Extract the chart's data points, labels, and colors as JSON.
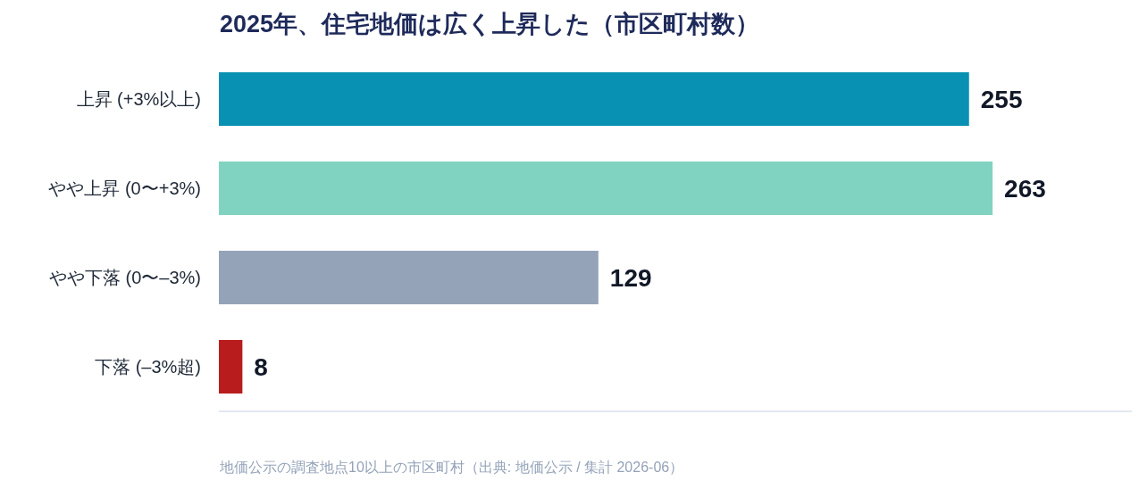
{
  "chart_data": {
    "type": "bar",
    "orientation": "horizontal",
    "title": "2025年、住宅地価は広く上昇した（市区町村数）",
    "categories": [
      "上昇 (+3%以上)",
      "やや上昇 (0〜+3%)",
      "やや下落 (0〜–3%)",
      "下落 (–3%超)"
    ],
    "values": [
      255,
      263,
      129,
      8
    ],
    "colors": [
      "#0891b2",
      "#80d3c1",
      "#94a3b8",
      "#b91c1c"
    ],
    "data_labels": true,
    "grid": false,
    "legend": false,
    "annotations": [
      "地価公示の調査地点10以上の市区町村（出典: 地価公示 / 集計 2026-06）"
    ]
  }
}
